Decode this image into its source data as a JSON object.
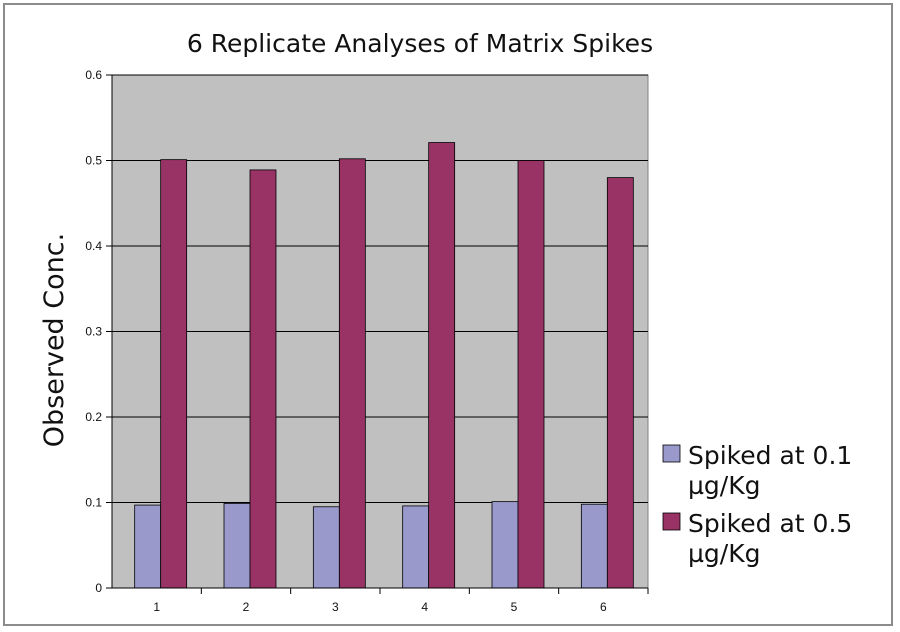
{
  "chart_data": {
    "type": "bar",
    "title": "6 Replicate Analyses of Matrix Spikes",
    "xlabel": "",
    "ylabel": "Observed Conc.",
    "categories": [
      "1",
      "2",
      "3",
      "4",
      "5",
      "6"
    ],
    "series": [
      {
        "name": "Spiked at 0.1 µg/Kg",
        "name_lines": [
          "Spiked at 0.1",
          "µg/Kg"
        ],
        "color": "#9999cc",
        "values": [
          0.097,
          0.099,
          0.095,
          0.096,
          0.101,
          0.098
        ]
      },
      {
        "name": "Spiked at 0.5 µg/Kg",
        "name_lines": [
          "Spiked at 0.5",
          "µg/Kg"
        ],
        "color": "#993366",
        "values": [
          0.501,
          0.489,
          0.502,
          0.521,
          0.5,
          0.48
        ]
      }
    ],
    "ylim": [
      0,
      0.6
    ],
    "yticks": [
      "0",
      "0.1",
      "0.2",
      "0.3",
      "0.4",
      "0.5",
      "0.6"
    ],
    "grid": true,
    "plot_background": "#c0c0c0",
    "legend_position": "right"
  }
}
